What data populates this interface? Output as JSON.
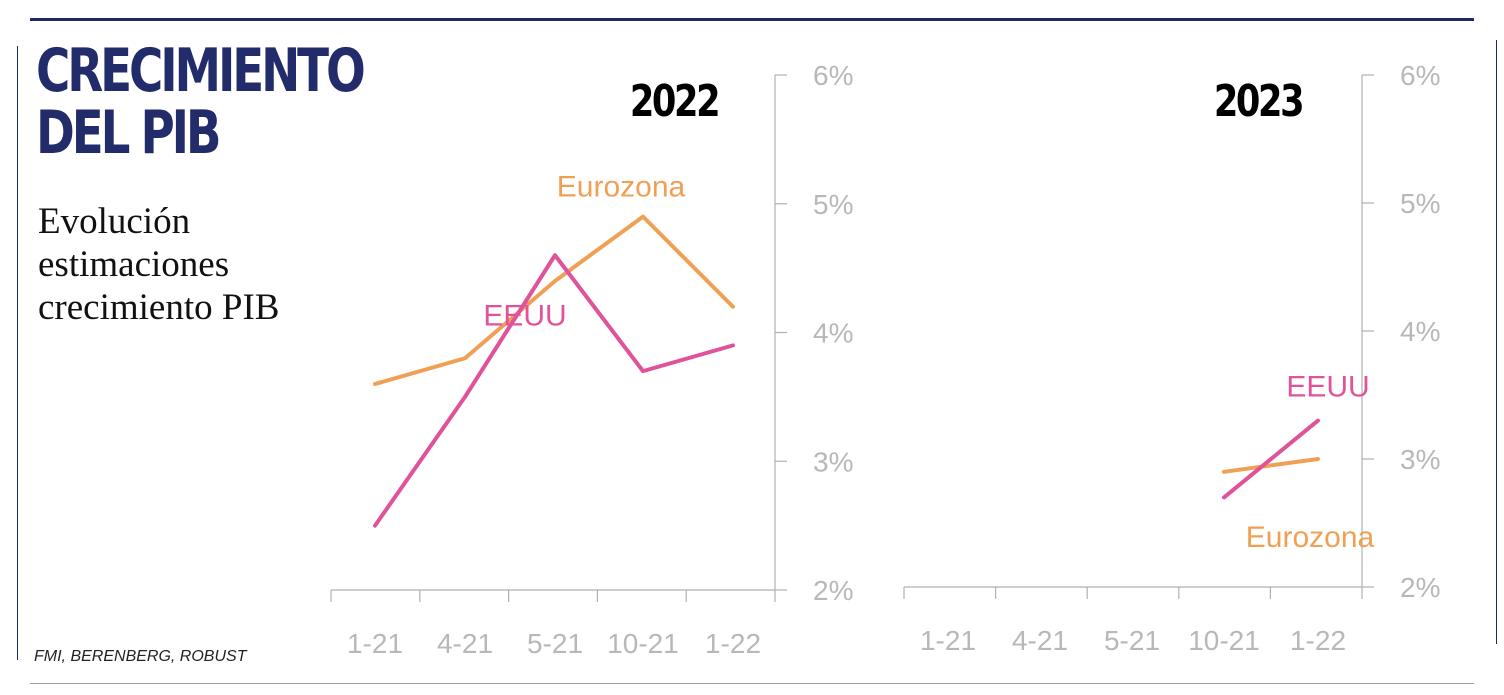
{
  "header": {
    "title_line1": "CRECIMIENTO",
    "title_line2": "DEL PIB",
    "subtitle": "Evolución estimaciones crecimiento PIB"
  },
  "footer": {
    "source": "FMI, BERENBERG, ROBUST"
  },
  "colors": {
    "eurozona": "#f0a055",
    "eeuu": "#e0529a",
    "axis": "#b0b0b0",
    "tick_text": "#b8b8b8",
    "title": "#232c6a"
  },
  "chart_data": [
    {
      "type": "line",
      "title": "2022",
      "categories": [
        "1-21",
        "4-21",
        "5-21",
        "10-21",
        "1-22"
      ],
      "y_ticks": [
        "2%",
        "3%",
        "4%",
        "5%",
        "6%"
      ],
      "ylim": [
        2,
        6
      ],
      "y_axis_side": "right",
      "series": [
        {
          "name": "Eurozona",
          "values": [
            3.6,
            3.8,
            4.4,
            4.9,
            4.2
          ],
          "color": "#f0a055"
        },
        {
          "name": "EEUU",
          "values": [
            2.5,
            3.5,
            4.6,
            3.7,
            3.9
          ],
          "color": "#e0529a"
        }
      ],
      "series_label_positions": [
        "above",
        "below"
      ]
    },
    {
      "type": "line",
      "title": "2023",
      "categories": [
        "1-21",
        "4-21",
        "5-21",
        "10-21",
        "1-22"
      ],
      "y_ticks": [
        "2%",
        "3%",
        "4%",
        "5%",
        "6%"
      ],
      "ylim": [
        2,
        6
      ],
      "y_axis_side": "right",
      "series": [
        {
          "name": "Eurozona",
          "values": [
            null,
            null,
            null,
            2.9,
            3.0
          ],
          "color": "#f0a055"
        },
        {
          "name": "EEUU",
          "values": [
            null,
            null,
            null,
            2.7,
            3.3
          ],
          "color": "#e0529a"
        }
      ],
      "series_label_positions": [
        "below",
        "above"
      ]
    }
  ]
}
